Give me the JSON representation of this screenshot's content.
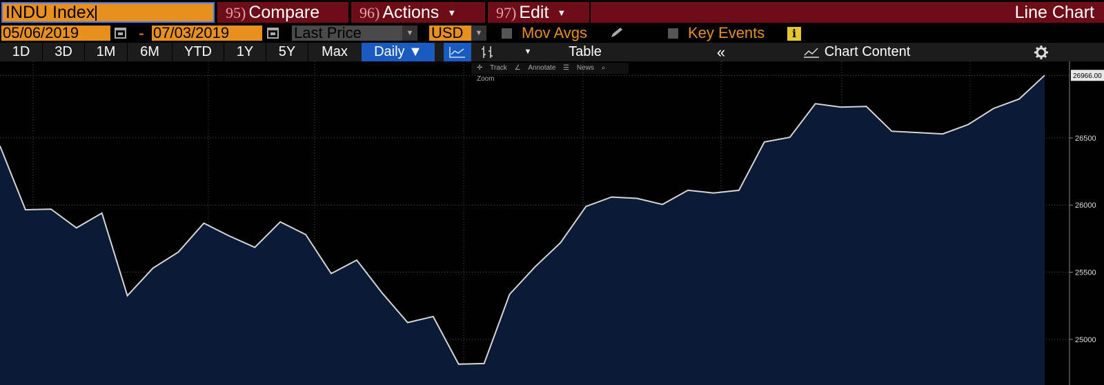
{
  "header": {
    "ticker": "INDU Index",
    "compare_num": "95)",
    "compare_label": "Compare",
    "actions_num": "96)",
    "actions_label": "Actions",
    "edit_num": "97)",
    "edit_label": "Edit",
    "chart_type": "Line Chart"
  },
  "controls": {
    "start_date": "05/06/2019",
    "dash": "-",
    "end_date": "07/03/2019",
    "field": "Last Price",
    "currency": "USD",
    "mov_avgs": "Mov Avgs",
    "key_events": "Key Events",
    "info_glyph": "i"
  },
  "tabs": {
    "periods": [
      "1D",
      "3D",
      "1M",
      "6M",
      "YTD",
      "1Y",
      "5Y",
      "Max"
    ],
    "frequency": "Daily ▼",
    "table": "Table",
    "collapse": "«",
    "chart_content": "Chart Content"
  },
  "toolbar": {
    "track": "Track",
    "annotate": "Annotate",
    "news": "News",
    "zoom": "Zoom"
  },
  "colors": {
    "accent_orange": "#e8901e",
    "menu_red": "#6e0c18",
    "active_blue": "#1a5bbf",
    "area_fill": "#0b1b35",
    "line": "#d6d6d6"
  },
  "chart_data": {
    "type": "area",
    "series": [
      {
        "values": [
          26440,
          25965,
          25970,
          25830,
          25940,
          25325,
          25530,
          25650,
          25865,
          25770,
          25685,
          25875,
          25780,
          25490,
          25590,
          25345,
          25125,
          25170,
          24815,
          24820,
          25335,
          25540,
          25720,
          25990,
          26060,
          26050,
          26005,
          26110,
          26090,
          26110,
          26470,
          26505,
          26755,
          26730,
          26735,
          26550,
          26540,
          26530,
          26600,
          26720,
          26790,
          26966
        ]
      }
    ],
    "last_value_label": "26966.00",
    "y_ticks": [
      25000,
      25500,
      26000,
      26500
    ],
    "ylim": [
      24660,
      27070
    ],
    "grid": true,
    "legend": "none"
  }
}
